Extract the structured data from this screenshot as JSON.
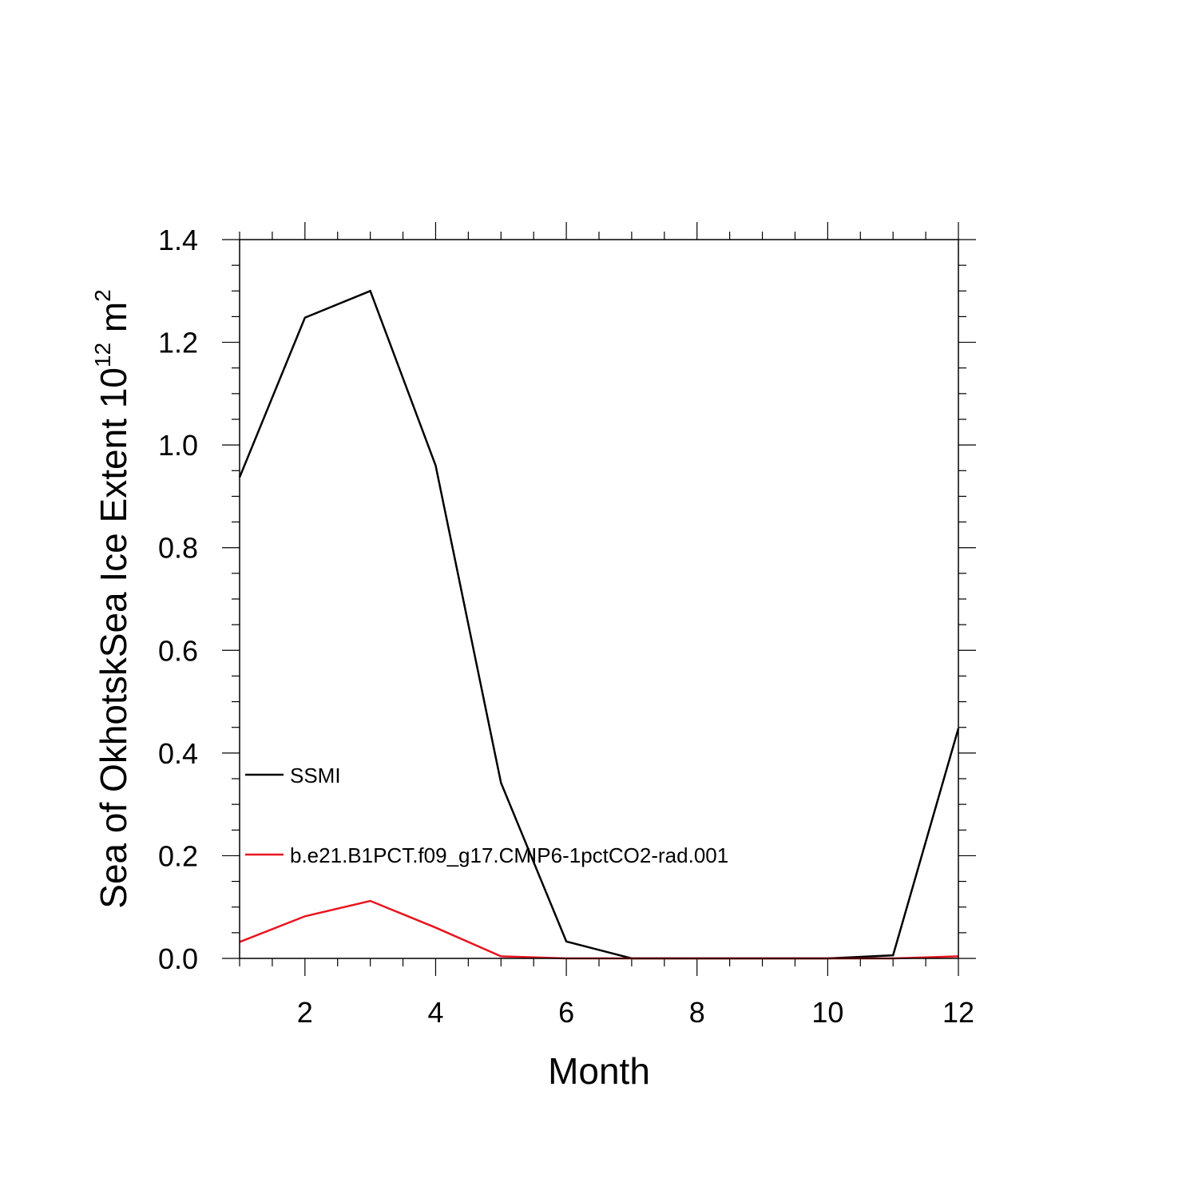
{
  "chart_data": {
    "type": "line",
    "title": "",
    "xlabel": "Month",
    "ylabel_main": "Sea of OkhotskSea Ice Extent 10",
    "ylabel_exp": "12",
    "ylabel_unit": " m",
    "ylabel_unit_exp": "2",
    "xlim": [
      1,
      12
    ],
    "ylim": [
      0,
      1.4
    ],
    "x_ticks": [
      2,
      4,
      6,
      8,
      10,
      12
    ],
    "x_tick_labels": [
      "2",
      "4",
      "6",
      "8",
      "10",
      "12"
    ],
    "y_ticks": [
      0,
      0.2,
      0.4,
      0.6,
      0.8,
      1.0,
      1.2,
      1.4
    ],
    "y_tick_labels": [
      "0.0",
      "0.2",
      "0.4",
      "0.6",
      "0.8",
      "1.0",
      "1.2",
      "1.4"
    ],
    "x": [
      1,
      2,
      3,
      4,
      5,
      6,
      7,
      8,
      9,
      10,
      11,
      12
    ],
    "grid": false,
    "legend_placement": "inside-left",
    "series": [
      {
        "name": "SSMI",
        "color": "#000000",
        "values": [
          0.937,
          1.248,
          1.3,
          0.96,
          0.342,
          0.033,
          0.0,
          0.0,
          0.0,
          0.0,
          0.006,
          0.448
        ]
      },
      {
        "name": "b.e21.B1PCT.f09_g17.CMIP6-1pctCO2-rad.001",
        "color": "#e8141e",
        "values": [
          0.032,
          0.082,
          0.112,
          0.06,
          0.004,
          0.0,
          0.0,
          0.0,
          0.0,
          0.0,
          0.0,
          0.004
        ]
      }
    ]
  }
}
